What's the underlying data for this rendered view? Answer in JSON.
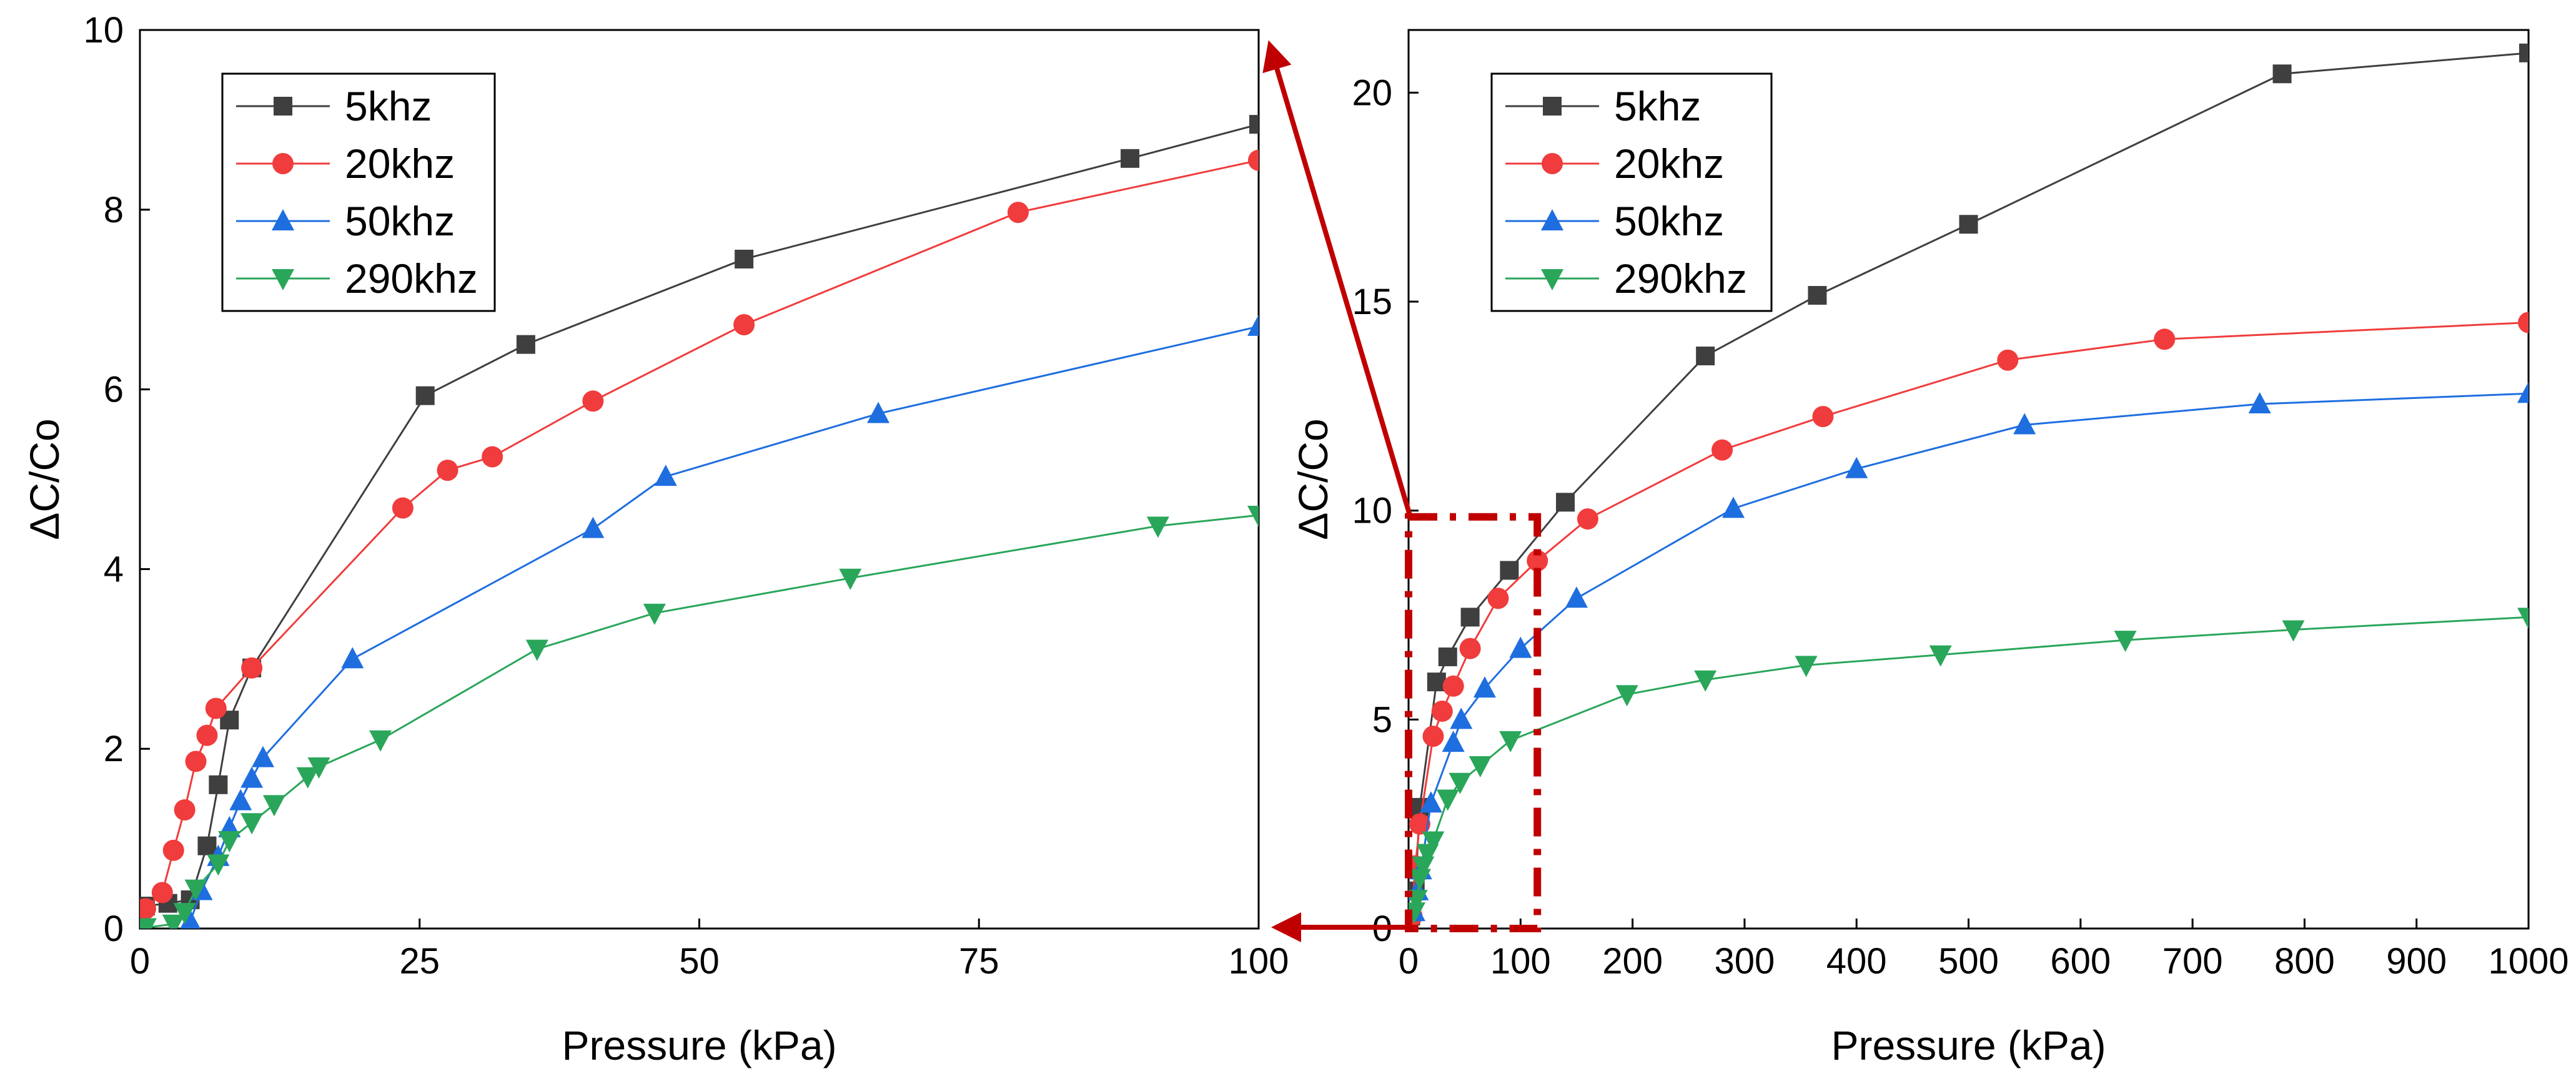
{
  "colors": {
    "5khz": "#3f3f3f",
    "20khz": "#f03c3c",
    "50khz": "#1e6ee0",
    "290khz": "#2aa65a",
    "annotation": "#c00000"
  },
  "chart_data": [
    {
      "type": "line",
      "title": "",
      "xlabel": "Pressure (kPa)",
      "ylabel": "ΔC/Co",
      "xlim": [
        0,
        100
      ],
      "ylim": [
        0,
        10
      ],
      "xticks": [
        0,
        25,
        50,
        75,
        100
      ],
      "yticks": [
        0,
        2,
        4,
        6,
        8,
        10
      ],
      "grid": false,
      "legend_position": "top-left",
      "series": [
        {
          "name": "5khz",
          "marker": "square",
          "color_key": "5khz",
          "x": [
            0.5,
            2.5,
            4.5,
            6,
            7,
            8,
            10,
            25.5,
            34.5,
            54,
            88.5,
            100
          ],
          "y": [
            0.25,
            0.28,
            0.32,
            0.92,
            1.6,
            2.32,
            2.9,
            5.93,
            6.5,
            7.45,
            8.57,
            8.95
          ]
        },
        {
          "name": "20khz",
          "marker": "circle",
          "color_key": "20khz",
          "x": [
            0.5,
            2,
            3,
            4,
            5,
            6,
            6.8,
            10,
            23.5,
            27.5,
            31.5,
            40.5,
            54,
            78.5,
            100
          ],
          "y": [
            0.22,
            0.4,
            0.87,
            1.32,
            1.86,
            2.15,
            2.45,
            2.9,
            4.68,
            5.1,
            5.25,
            5.87,
            6.72,
            7.97,
            8.55
          ]
        },
        {
          "name": "50khz",
          "marker": "triangle-up",
          "color_key": "50khz",
          "x": [
            4.5,
            5.5,
            7,
            8,
            9,
            10,
            11,
            19,
            40.5,
            47,
            66,
            100
          ],
          "y": [
            0.08,
            0.42,
            0.8,
            1.12,
            1.42,
            1.67,
            1.9,
            3.0,
            4.45,
            5.03,
            5.73,
            6.7
          ]
        },
        {
          "name": "290khz",
          "marker": "triangle-down",
          "color_key": "290khz",
          "x": [
            0.5,
            3,
            4,
            5,
            7,
            8,
            10,
            12,
            15,
            16,
            21.5,
            35.5,
            46,
            63.5,
            91,
            100
          ],
          "y": [
            0.01,
            0.05,
            0.18,
            0.44,
            0.72,
            0.98,
            1.18,
            1.38,
            1.69,
            1.8,
            2.1,
            3.11,
            3.51,
            3.9,
            4.48,
            4.6
          ]
        }
      ]
    },
    {
      "type": "line",
      "title": "",
      "xlabel": "Pressure (kPa)",
      "ylabel": "ΔC/Co",
      "xlim": [
        0,
        1000
      ],
      "ylim": [
        0,
        21.5
      ],
      "xticks": [
        0,
        100,
        200,
        300,
        400,
        500,
        600,
        700,
        800,
        900,
        1000
      ],
      "yticks": [
        0,
        5,
        10,
        15,
        20
      ],
      "grid": false,
      "legend_position": "top-left",
      "series": [
        {
          "name": "5khz",
          "marker": "square",
          "color_key": "5khz",
          "x": [
            2,
            6,
            10,
            25,
            35,
            55,
            90,
            140,
            265,
            365,
            500,
            780,
            1000
          ],
          "y": [
            0.3,
            0.9,
            2.9,
            5.9,
            6.5,
            7.45,
            8.57,
            10.2,
            13.7,
            15.15,
            16.85,
            20.45,
            20.95
          ]
        },
        {
          "name": "20khz",
          "marker": "circle",
          "color_key": "20khz",
          "x": [
            3,
            6,
            10,
            22,
            30,
            40,
            55,
            80,
            115,
            160,
            280,
            370,
            535,
            675,
            1000
          ],
          "y": [
            0.3,
            1.5,
            2.5,
            4.6,
            5.2,
            5.8,
            6.7,
            7.9,
            8.8,
            9.8,
            11.45,
            12.25,
            13.6,
            14.1,
            14.5
          ],
          "labels": []
        },
        {
          "name": "50khz",
          "marker": "triangle-up",
          "color_key": "50khz",
          "x": [
            5,
            8,
            11,
            20,
            40,
            47,
            68,
            100,
            150,
            290,
            400,
            550,
            760,
            1000
          ],
          "y": [
            0.4,
            0.9,
            1.4,
            3.0,
            4.45,
            5.0,
            5.75,
            6.7,
            7.9,
            10.05,
            11.0,
            12.05,
            12.55,
            12.8
          ]
        },
        {
          "name": "290khz",
          "marker": "triangle-down",
          "color_key": "290khz",
          "x": [
            5,
            7,
            10,
            13,
            17,
            22,
            35,
            46,
            64,
            91,
            195,
            265,
            355,
            475,
            640,
            790,
            1000
          ],
          "y": [
            0.4,
            0.7,
            1.2,
            1.5,
            1.8,
            2.1,
            3.1,
            3.5,
            3.9,
            4.5,
            5.6,
            5.95,
            6.3,
            6.55,
            6.9,
            7.15,
            7.45
          ]
        }
      ]
    }
  ],
  "zoom_box": {
    "x_range": [
      0,
      115
    ],
    "y_range": [
      0,
      9.85
    ]
  },
  "legend_entries": [
    "5khz",
    "20khz",
    "50khz",
    "290khz"
  ]
}
